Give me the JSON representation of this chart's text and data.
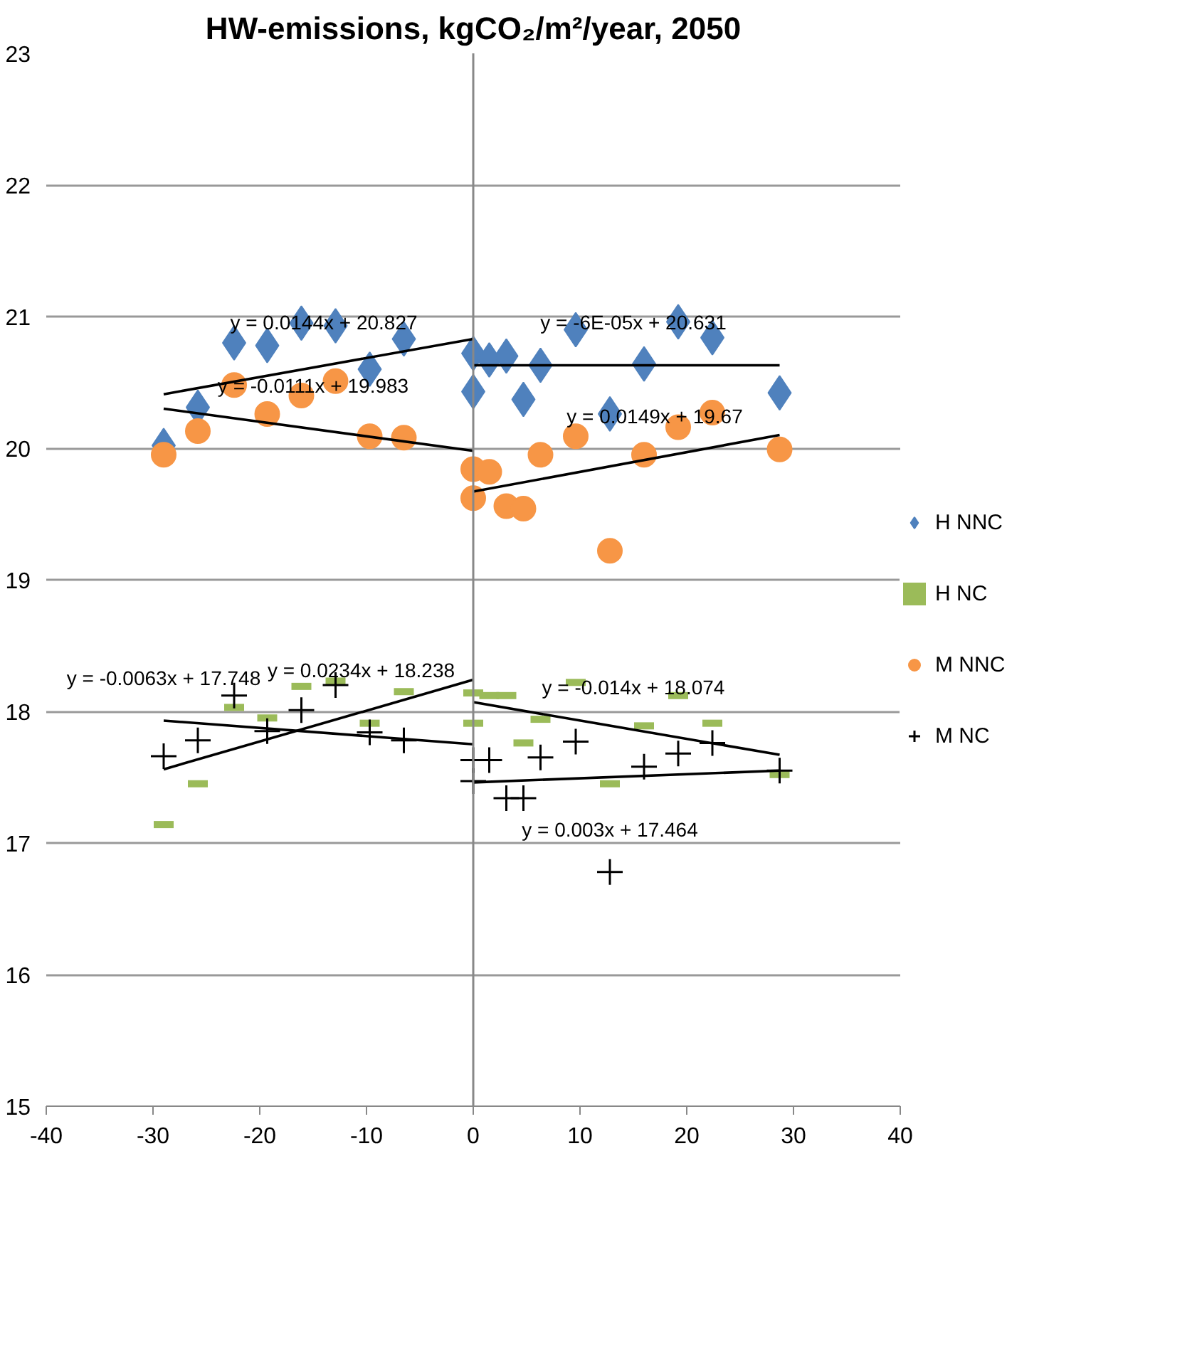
{
  "chart_data": {
    "type": "scatter",
    "title": "HW-emissions, kgCO₂/m²/year, 2050",
    "xlim": [
      -40,
      40
    ],
    "xticks": [
      -40,
      -30,
      -20,
      -10,
      0,
      10,
      20,
      30,
      40
    ],
    "ylim": [
      15,
      23
    ],
    "yticks": [
      15,
      16,
      17,
      18,
      19,
      20,
      21,
      22,
      23
    ],
    "grid": "y",
    "legend": "right",
    "series": [
      {
        "name": "H NNC",
        "color": "#4f81bd",
        "marker": "diamond",
        "x": [
          -29,
          -25.8,
          -22.4,
          -19.3,
          -16.1,
          -12.9,
          -9.7,
          -6.5,
          0,
          0,
          1.5,
          3.1,
          4.7,
          6.3,
          9.6,
          12.8,
          16,
          19.2,
          22.4,
          28.7
        ],
        "values": [
          20.02,
          20.31,
          20.8,
          20.78,
          20.95,
          20.93,
          20.6,
          20.83,
          20.72,
          20.43,
          20.67,
          20.7,
          20.37,
          20.63,
          20.9,
          20.26,
          20.64,
          20.96,
          20.84,
          20.42
        ]
      },
      {
        "name": "H NC",
        "color": "#9bbb59",
        "x": [
          -29,
          -25.8,
          -22.4,
          -19.3,
          -16.1,
          -12.9,
          -9.7,
          -6.5,
          0,
          0,
          1.5,
          3.1,
          4.7,
          6.3,
          9.6,
          12.8,
          16,
          19.2,
          22.4,
          28.7
        ],
        "values": [
          17.14,
          17.45,
          18.03,
          17.95,
          18.19,
          18.23,
          17.91,
          18.15,
          18.14,
          17.91,
          18.12,
          18.12,
          17.76,
          17.94,
          18.22,
          17.45,
          17.89,
          18.12,
          17.91,
          17.52
        ]
      },
      {
        "name": "M NNC",
        "color": "#f79646",
        "marker": "circle",
        "x": [
          -29,
          -25.8,
          -22.4,
          -19.3,
          -16.1,
          -12.9,
          -9.7,
          -6.5,
          0,
          0,
          1.5,
          3.1,
          4.7,
          6.3,
          9.6,
          12.8,
          16,
          19.2,
          22.4,
          28.7
        ],
        "values": [
          19.95,
          20.13,
          20.48,
          20.26,
          20.4,
          20.51,
          20.09,
          20.08,
          19.84,
          19.62,
          19.82,
          19.56,
          19.54,
          19.95,
          20.09,
          19.22,
          19.95,
          20.16,
          20.27,
          19.99
        ]
      },
      {
        "name": "M NC",
        "color": "#000000",
        "marker": "cross",
        "x": [
          -29,
          -25.8,
          -22.4,
          -19.3,
          -16.1,
          -12.9,
          -9.7,
          -6.5,
          0,
          0,
          1.5,
          3.1,
          4.7,
          6.3,
          9.6,
          12.8,
          16,
          19.2,
          22.4,
          28.7
        ],
        "values": [
          17.66,
          17.78,
          18.12,
          17.85,
          18.01,
          18.2,
          17.84,
          17.78,
          17.63,
          17.47,
          17.63,
          17.34,
          17.34,
          17.65,
          17.77,
          16.78,
          17.58,
          17.68,
          17.76,
          17.55
        ]
      },
      {
        "type": "line",
        "color": "#000000",
        "x": [
          -29,
          0
        ],
        "values": [
          20.41,
          20.83
        ]
      },
      {
        "type": "line",
        "color": "#000000",
        "x": [
          0,
          28.7
        ],
        "values": [
          20.63,
          20.63
        ]
      },
      {
        "type": "line",
        "color": "#000000",
        "x": [
          -29,
          0
        ],
        "values": [
          20.3,
          19.98
        ]
      },
      {
        "type": "line",
        "color": "#000000",
        "x": [
          0,
          28.7
        ],
        "values": [
          19.67,
          20.1
        ]
      },
      {
        "type": "line",
        "color": "#000000",
        "x": [
          -29,
          0
        ],
        "values": [
          17.56,
          18.24
        ]
      },
      {
        "type": "line",
        "color": "#000000",
        "x": [
          -29,
          0
        ],
        "values": [
          17.93,
          17.75
        ]
      },
      {
        "type": "line",
        "color": "#000000",
        "x": [
          0,
          28.7
        ],
        "values": [
          18.07,
          17.67
        ]
      },
      {
        "type": "line",
        "color": "#000000",
        "x": [
          0,
          28.7
        ],
        "values": [
          17.46,
          17.55
        ]
      }
    ],
    "annotations": [
      {
        "text": "y = 0.0144x + 20.827",
        "x": -14,
        "y": 20.63
      },
      {
        "text": "y = -6E-05x + 20.631",
        "x": 15,
        "y": 20.63
      },
      {
        "text": "y = -0.0111x + 19.983",
        "x": -15,
        "y": 20.15
      },
      {
        "text": "y = 0.0149x + 19.67",
        "x": 17,
        "y": 19.92
      },
      {
        "text": "y = 0.0234x + 18.238",
        "x": -10.5,
        "y": 17.99
      },
      {
        "text": "y = -0.014x + 18.074",
        "x": 15,
        "y": 17.86
      },
      {
        "text": "y = -0.0063x + 17.748",
        "x": -29,
        "y": 17.93
      },
      {
        "text": "y = 0.003x + 17.464",
        "x": 12.8,
        "y": 16.78
      }
    ]
  }
}
